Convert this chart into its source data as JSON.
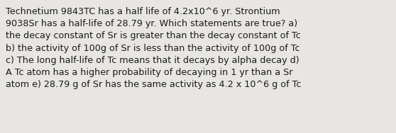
{
  "text": "Technetium 9843TC has a half life of 4.2x10^6 yr. Strontium\n9038Sr has a half-life of 28.79 yr. Which statements are true? a)\nthe decay constant of Sr is greater than the decay constant of Tc\nb) the activity of 100g of Sr is less than the activity of 100g of Tc\nc) The long half-life of Tc means that it decays by alpha decay d)\nA Tc atom has a higher probability of decaying in 1 yr than a Sr\natom e) 28.79 g of Sr has the same activity as 4.2 x 10^6 g of Tc",
  "background_color": "#e8e6e2",
  "text_color": "#1a1a1a",
  "font_size": 9.2,
  "fig_width": 5.58,
  "fig_height": 1.88,
  "dpi": 100
}
